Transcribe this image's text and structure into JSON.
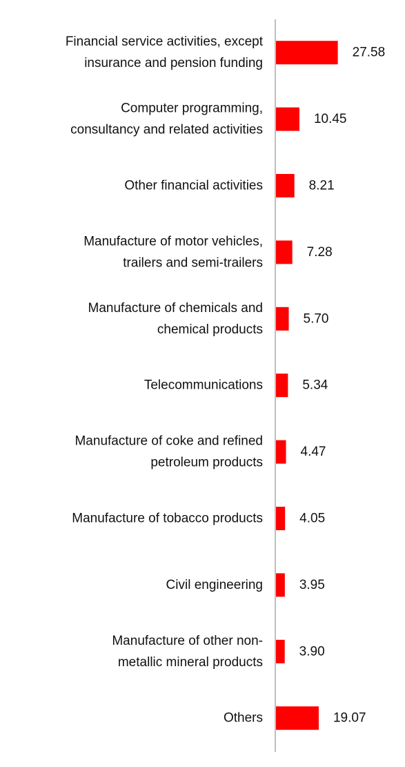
{
  "chart_data": {
    "type": "bar",
    "orientation": "horizontal",
    "categories": [
      [
        "Financial service activities, except",
        "insurance and pension funding"
      ],
      [
        "Computer programming,",
        "consultancy and related activities"
      ],
      [
        "Other financial activities"
      ],
      [
        "Manufacture of motor vehicles,",
        "trailers and semi-trailers"
      ],
      [
        "Manufacture of chemicals and",
        "chemical products"
      ],
      [
        "Telecommunications"
      ],
      [
        "Manufacture of coke and refined",
        "petroleum products"
      ],
      [
        "Manufacture of tobacco products"
      ],
      [
        "Civil engineering"
      ],
      [
        "Manufacture of other non-",
        "metallic mineral products"
      ],
      [
        "Others"
      ]
    ],
    "values": [
      27.58,
      10.45,
      8.21,
      7.28,
      5.7,
      5.34,
      4.47,
      4.05,
      3.95,
      3.9,
      19.07
    ],
    "value_labels": [
      "27.58",
      "10.45",
      "8.21",
      "7.28",
      "5.70",
      "5.34",
      "4.47",
      "4.05",
      "3.95",
      "3.90",
      "19.07"
    ],
    "bar_color": "#ff0000",
    "axis_color": "#bfbfbf",
    "xlim": [
      0,
      100
    ],
    "grid": false,
    "legend": "none"
  }
}
